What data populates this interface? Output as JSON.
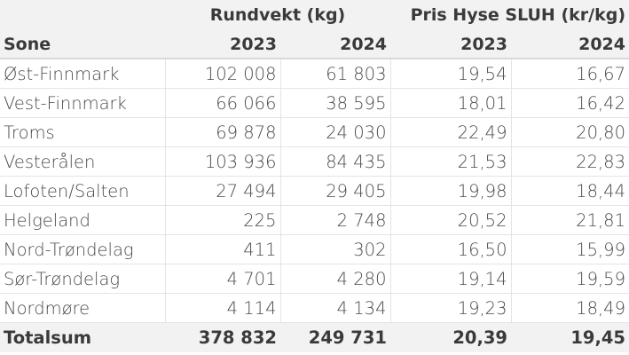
{
  "header": {
    "group1": "Rundvekt (kg)",
    "group2": "Pris Hyse SLUH (kr/kg)",
    "sone": "Sone",
    "years": [
      "2023",
      "2024",
      "2023",
      "2024"
    ]
  },
  "rows": [
    [
      "Øst-Finnmark",
      "102 008",
      "61 803",
      "19,54",
      "16,67"
    ],
    [
      "Vest-Finnmark",
      "66 066",
      "38 595",
      "18,01",
      "16,42"
    ],
    [
      "Troms",
      "69 878",
      "24 030",
      "22,49",
      "20,80"
    ],
    [
      "Vesterålen",
      "103 936",
      "84 435",
      "21,53",
      "22,83"
    ],
    [
      "Lofoten/Salten",
      "27 494",
      "29 405",
      "19,98",
      "18,44"
    ],
    [
      "Helgeland",
      "225",
      "2 748",
      "20,52",
      "21,81"
    ],
    [
      "Nord-Trøndelag",
      "411",
      "302",
      "16,50",
      "15,99"
    ],
    [
      "Sør-Trøndelag",
      "4 701",
      "4 280",
      "19,14",
      "19,59"
    ],
    [
      "Nordmøre",
      "4 114",
      "4 134",
      "19,23",
      "18,49"
    ]
  ],
  "total": [
    "Totalsum",
    "378 832",
    "249 731",
    "20,39",
    "19,45"
  ]
}
